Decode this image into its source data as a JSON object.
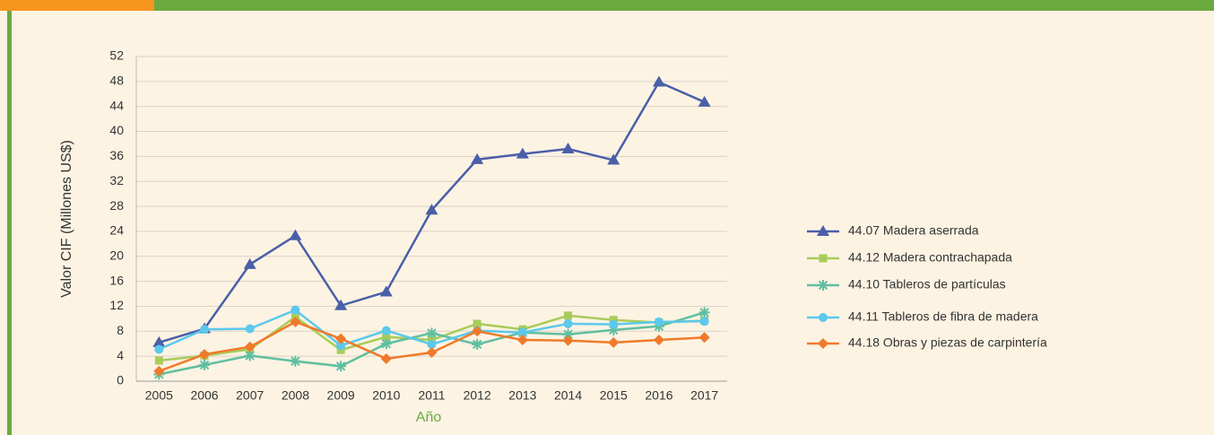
{
  "chart_data": {
    "type": "line",
    "y_label": "Valor CIF (Millones US$)",
    "x_label": "Año",
    "categories": [
      "2005",
      "2006",
      "2007",
      "2008",
      "2009",
      "2010",
      "2011",
      "2012",
      "2013",
      "2014",
      "2015",
      "2016",
      "2017"
    ],
    "ylim": [
      0,
      52
    ],
    "yticks": [
      0,
      4,
      8,
      12,
      16,
      20,
      24,
      28,
      32,
      36,
      40,
      44,
      48,
      52
    ],
    "grid": true,
    "legend": "right",
    "series": [
      {
        "name": "44.07 Madera aserrada",
        "color": "#4a5fa8",
        "marker": "triangle",
        "values": [
          6.2,
          8.4,
          18.7,
          23.3,
          12.1,
          14.3,
          27.4,
          35.5,
          36.4,
          37.2,
          35.4,
          47.9,
          44.7
        ]
      },
      {
        "name": "44.12 Madera contrachapada",
        "color": "#a8cc5a",
        "marker": "square",
        "values": [
          3.3,
          4.1,
          5.1,
          10.3,
          5.0,
          7.1,
          6.6,
          9.2,
          8.3,
          10.5,
          9.8,
          9.4,
          9.7
        ]
      },
      {
        "name": "44.10 Tableros de partículas",
        "color": "#5fbfa0",
        "marker": "star",
        "values": [
          1.1,
          2.6,
          4.1,
          3.2,
          2.4,
          6.0,
          7.7,
          5.9,
          7.8,
          7.5,
          8.2,
          8.8,
          11.0
        ]
      },
      {
        "name": "44.11 Tableros de fibra de madera",
        "color": "#5bc8ec",
        "marker": "circle",
        "values": [
          5.1,
          8.3,
          8.4,
          11.4,
          5.7,
          8.1,
          5.9,
          8.1,
          7.8,
          9.2,
          9.1,
          9.5,
          9.6
        ]
      },
      {
        "name": "44.18 Obras y piezas de carpintería",
        "color": "#f07a2a",
        "marker": "diamond",
        "values": [
          1.6,
          4.3,
          5.5,
          9.5,
          6.8,
          3.6,
          4.6,
          8.0,
          6.6,
          6.5,
          6.2,
          6.6,
          7.0
        ]
      }
    ]
  }
}
